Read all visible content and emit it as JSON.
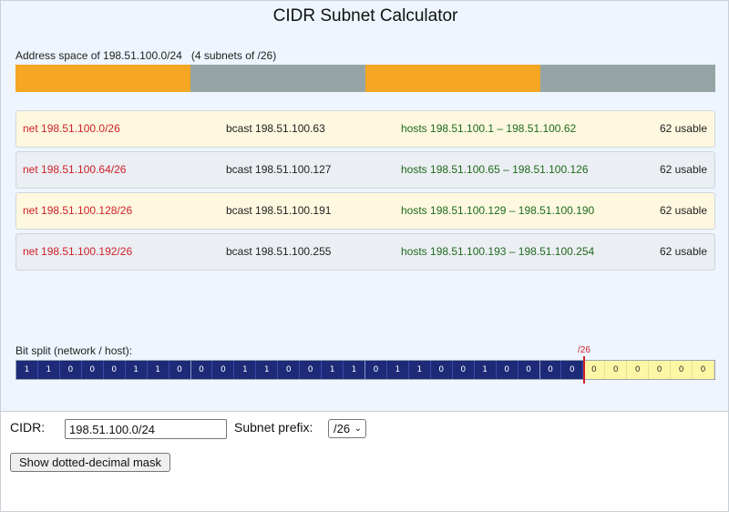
{
  "title": "CIDR Subnet Calculator",
  "address_space": {
    "label": "Address space of 198.51.100.0/24",
    "count_label": "(4 subnets of /26)",
    "segments": [
      {
        "color": "#f5a623"
      },
      {
        "color": "#95a5a6"
      },
      {
        "color": "#f5a623"
      },
      {
        "color": "#95a5a6"
      }
    ]
  },
  "subnets": [
    {
      "net": "net 198.51.100.0/26",
      "bcast": "bcast 198.51.100.63",
      "hosts": "hosts 198.51.100.1 – 198.51.100.62",
      "usable": "62 usable"
    },
    {
      "net": "net 198.51.100.64/26",
      "bcast": "bcast 198.51.100.127",
      "hosts": "hosts 198.51.100.65 – 198.51.100.126",
      "usable": "62 usable"
    },
    {
      "net": "net 198.51.100.128/26",
      "bcast": "bcast 198.51.100.191",
      "hosts": "hosts 198.51.100.129 – 198.51.100.190",
      "usable": "62 usable"
    },
    {
      "net": "net 198.51.100.192/26",
      "bcast": "bcast 198.51.100.255",
      "hosts": "hosts 198.51.100.193 – 198.51.100.254",
      "usable": "62 usable"
    }
  ],
  "bit_split": {
    "label": "Bit split (network / host):",
    "prefix_marker": "/26",
    "prefix_length": 26,
    "bits": [
      "1",
      "1",
      "0",
      "0",
      "0",
      "1",
      "1",
      "0",
      "0",
      "0",
      "1",
      "1",
      "0",
      "0",
      "1",
      "1",
      "0",
      "1",
      "1",
      "0",
      "0",
      "1",
      "0",
      "0",
      "0",
      "0",
      "0",
      "0",
      "0",
      "0",
      "0",
      "0"
    ]
  },
  "controls": {
    "cidr_label": "CIDR:",
    "cidr_value": "198.51.100.0/24",
    "prefix_label": "Subnet prefix:",
    "prefix_value": "/26",
    "mask_button_label": "Show dotted-decimal mask"
  },
  "colors": {
    "net_text": "#d0202a",
    "hosts_text": "#1e6a1e",
    "network_bit": "#1c2a78",
    "host_bit": "#fdf6a4"
  }
}
